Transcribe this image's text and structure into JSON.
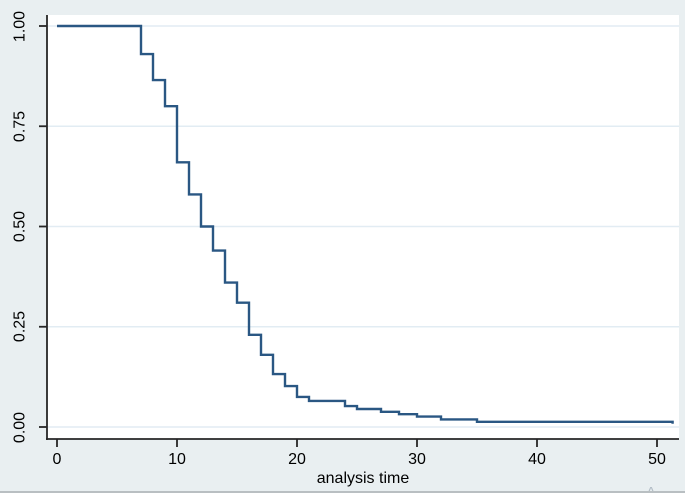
{
  "colors": {
    "background": "#e9eff1",
    "plot_background": "#ffffff",
    "gridline": "#e2ecf3",
    "axis": "#262626",
    "text": "#000000",
    "line": "#2a5783",
    "watermark": "#b3bdc6",
    "bottom_edge": "#b9bfc2"
  },
  "watermark": "A",
  "chart_data": {
    "type": "line",
    "subtype": "kaplan-meier-survival-step",
    "title": "",
    "xlabel": "analysis time",
    "ylabel": "",
    "xlim": [
      0,
      51.8
    ],
    "ylim": [
      0,
      1.0
    ],
    "grid": "horizontal-only",
    "legend": "none",
    "x_ticks": [
      {
        "value": 0,
        "label": "0"
      },
      {
        "value": 10,
        "label": "10"
      },
      {
        "value": 20,
        "label": "20"
      },
      {
        "value": 30,
        "label": "30"
      },
      {
        "value": 40,
        "label": "40"
      },
      {
        "value": 50,
        "label": "50"
      }
    ],
    "y_ticks": [
      {
        "value": 0.0,
        "label": "0.00"
      },
      {
        "value": 0.25,
        "label": "0.25"
      },
      {
        "value": 0.5,
        "label": "0.50"
      },
      {
        "value": 0.75,
        "label": "0.75"
      },
      {
        "value": 1.0,
        "label": "1.00"
      }
    ],
    "series": [
      {
        "color": "#2a5783",
        "step": true,
        "points": [
          {
            "t": 0,
            "s": 1.0
          },
          {
            "t": 7,
            "s": 0.93
          },
          {
            "t": 8,
            "s": 0.865
          },
          {
            "t": 9,
            "s": 0.8
          },
          {
            "t": 10,
            "s": 0.66
          },
          {
            "t": 11,
            "s": 0.58
          },
          {
            "t": 12,
            "s": 0.5
          },
          {
            "t": 13,
            "s": 0.44
          },
          {
            "t": 14,
            "s": 0.36
          },
          {
            "t": 15,
            "s": 0.31
          },
          {
            "t": 16,
            "s": 0.23
          },
          {
            "t": 17,
            "s": 0.18
          },
          {
            "t": 18,
            "s": 0.132
          },
          {
            "t": 19,
            "s": 0.102
          },
          {
            "t": 20,
            "s": 0.075
          },
          {
            "t": 21,
            "s": 0.065
          },
          {
            "t": 24,
            "s": 0.052
          },
          {
            "t": 25,
            "s": 0.045
          },
          {
            "t": 27,
            "s": 0.038
          },
          {
            "t": 28.5,
            "s": 0.032
          },
          {
            "t": 30,
            "s": 0.026
          },
          {
            "t": 32,
            "s": 0.019
          },
          {
            "t": 35,
            "s": 0.013
          },
          {
            "t": 51.3,
            "s": 0.008
          }
        ]
      }
    ]
  }
}
